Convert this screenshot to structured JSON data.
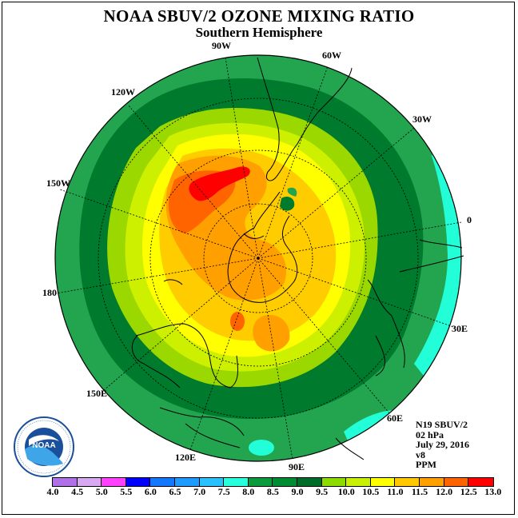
{
  "title": "NOAA SBUV/2 OZONE MIXING RATIO",
  "subtitle": "Southern Hemisphere",
  "longitude_labels": [
    "90W",
    "60W",
    "120W",
    "30W",
    "150W",
    "0",
    "180",
    "30E",
    "150E",
    "60E",
    "120E",
    "90E"
  ],
  "info": {
    "instrument": "N19 SBUV/2",
    "level": "02 hPa",
    "date": "July 29, 2016",
    "version": "v8",
    "units": "PPM"
  },
  "logo_text": "NOAA",
  "colorbar": {
    "colors": [
      "#b070e8",
      "#d8a8f0",
      "#ff40ff",
      "#0000ff",
      "#1478ff",
      "#1e9bff",
      "#28c3ff",
      "#28ffdc",
      "#0a9b3c",
      "#008c32",
      "#006e28",
      "#8cdc00",
      "#c8f000",
      "#ffff00",
      "#ffc800",
      "#ffa000",
      "#ff6400",
      "#ff0000",
      "#8c4628"
    ],
    "ticks": [
      "4.0",
      "4.5",
      "5.0",
      "5.5",
      "6.0",
      "6.5",
      "7.0",
      "7.5",
      "8.0",
      "8.5",
      "9.0",
      "9.5",
      "10.0",
      "10.5",
      "11.0",
      "11.5",
      "12.0",
      "12.5",
      "13.0"
    ]
  },
  "field_colors": {
    "level_8_0": "#23a550",
    "level_8_5": "#007a2c",
    "level_9_0": "#9ad800",
    "level_9_5": "#ccf000",
    "level_10_0": "#ffff00",
    "level_10_5": "#ffcc00",
    "level_11_0": "#ffa000",
    "level_11_5": "#ff6400",
    "level_12_0": "#ff0000",
    "low_7_5": "#22ffd8"
  }
}
